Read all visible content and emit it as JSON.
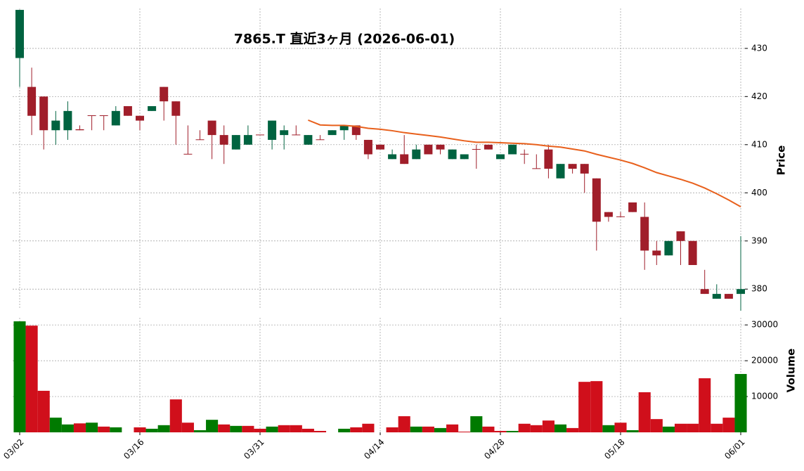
{
  "chart_data": {
    "type": "candlestick",
    "title": "7865.T  直近3ヶ月  (2026-06-01)",
    "categories": [
      "03/02",
      null,
      null,
      null,
      null,
      null,
      null,
      null,
      null,
      null,
      "03/16",
      null,
      null,
      null,
      null,
      null,
      null,
      null,
      null,
      null,
      "03/31",
      null,
      null,
      null,
      null,
      null,
      null,
      null,
      null,
      null,
      "04/14",
      null,
      null,
      null,
      null,
      null,
      null,
      null,
      null,
      null,
      "04/28",
      null,
      null,
      null,
      null,
      null,
      null,
      null,
      null,
      null,
      "05/18",
      null,
      null,
      null,
      null,
      null,
      null,
      null,
      null,
      null,
      "06/01"
    ],
    "open": [
      428,
      422,
      420,
      413,
      413,
      413.2,
      416.1,
      416.1,
      414,
      418,
      416,
      417,
      422,
      419,
      408.1,
      411.1,
      415,
      412,
      409,
      410,
      412.1,
      411,
      412,
      412.1,
      410,
      411.1,
      412,
      413,
      414,
      411,
      410,
      407,
      408,
      407,
      410,
      410,
      407,
      407,
      409.1,
      410,
      407,
      408,
      408.1,
      405.1,
      409,
      403,
      406,
      406,
      403,
      396,
      395.1,
      398,
      395,
      388,
      387,
      392,
      390,
      380,
      378,
      379,
      379
    ],
    "high": [
      438,
      426,
      420,
      417,
      419,
      414,
      416,
      416,
      418,
      418,
      416,
      418,
      422,
      419,
      414,
      413,
      415,
      414,
      412,
      414,
      412,
      415,
      414,
      414,
      412,
      412,
      413,
      414,
      414,
      411,
      410,
      409,
      412,
      410,
      410,
      410,
      409,
      408,
      410,
      410,
      408,
      410,
      409,
      408,
      410,
      406,
      406,
      406,
      403,
      396,
      396,
      398,
      398,
      390,
      390,
      392,
      390,
      384,
      381,
      379,
      391
    ],
    "low": [
      422,
      412,
      409,
      410,
      411,
      413,
      413,
      413,
      414,
      416,
      413,
      417,
      415,
      410,
      408,
      411,
      407,
      406,
      409,
      410,
      412,
      409,
      409,
      412,
      410,
      411,
      412,
      411,
      411,
      407,
      409,
      407,
      406,
      407,
      408,
      408,
      407,
      407,
      405,
      409,
      407,
      408,
      406,
      405,
      403,
      403,
      404,
      400,
      388,
      394,
      395,
      396,
      384,
      385,
      387,
      385,
      385,
      379,
      378,
      378,
      375.5
    ],
    "close": [
      438,
      416,
      413,
      415,
      417,
      413,
      416,
      416,
      417,
      416,
      415,
      418,
      419,
      416,
      408,
      411,
      412,
      410,
      412,
      412,
      412,
      415,
      413,
      412,
      412,
      411,
      413,
      414,
      412,
      408,
      409,
      408,
      406,
      409,
      408,
      409,
      409,
      408,
      409,
      409,
      408,
      410,
      408,
      405,
      405,
      406,
      405,
      404,
      394,
      395,
      395,
      396,
      388,
      387,
      390,
      390,
      385,
      379,
      379,
      378,
      380
    ],
    "up_color": "#006340",
    "down_color": "#a01e2a",
    "ma_values": [
      null,
      null,
      null,
      null,
      null,
      null,
      null,
      null,
      null,
      null,
      null,
      null,
      null,
      null,
      null,
      null,
      null,
      null,
      null,
      null,
      null,
      null,
      null,
      null,
      415.1,
      414.1,
      414,
      414,
      413.8,
      413.4,
      413.2,
      412.9,
      412.5,
      412.2,
      411.9,
      411.6,
      411.2,
      410.8,
      410.5,
      410.5,
      410.4,
      410.3,
      410.2,
      410.0,
      409.7,
      409.5,
      409.1,
      408.7,
      408.0,
      407.4,
      406.8,
      406.1,
      405.2,
      404.2,
      403.5,
      402.8,
      402.0,
      401.0,
      399.8,
      398.5,
      397.1
    ],
    "ma_color": "#e8601c",
    "ylabel": "Price",
    "ylim": [
      375.8,
      438.3
    ],
    "yticks": [
      380,
      390,
      400,
      410,
      420,
      430
    ],
    "grid": true,
    "volume": {
      "values": [
        31000,
        29800,
        11600,
        4100,
        2200,
        2500,
        2700,
        1600,
        1400,
        0,
        1400,
        1000,
        2000,
        9200,
        2700,
        600,
        3500,
        2200,
        1800,
        1800,
        1000,
        1600,
        2000,
        2000,
        1000,
        400,
        0,
        1000,
        1400,
        2400,
        0,
        1400,
        4500,
        1600,
        1600,
        1200,
        2200,
        200,
        4500,
        1600,
        400,
        400,
        2400,
        2000,
        3300,
        2200,
        1200,
        14100,
        14300,
        2000,
        2700,
        600,
        11200,
        3700,
        1600,
        2400,
        2400,
        15100,
        2400,
        4100,
        16300
      ],
      "up_color": "#007a00",
      "down_color": "#d00f1b",
      "ylabel": "Volume",
      "ylim": [
        0,
        32000
      ],
      "yticks": [
        10000,
        20000,
        30000
      ]
    }
  }
}
